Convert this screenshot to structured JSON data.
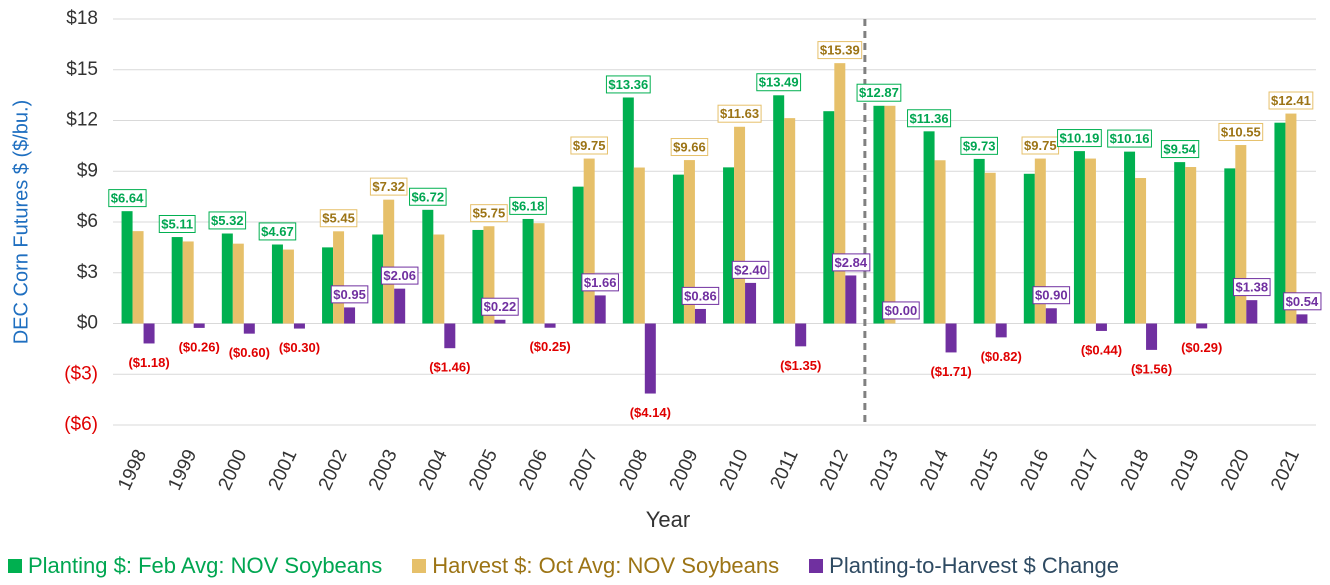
{
  "chart_data": {
    "type": "bar",
    "y_axis_label": "DEC Corn Futures $ ($/bu.)",
    "x_axis_label": "Year",
    "categories": [
      "1998",
      "1999",
      "2000",
      "2001",
      "2002",
      "2003",
      "2004",
      "2005",
      "2006",
      "2007",
      "2008",
      "2009",
      "2010",
      "2011",
      "2012",
      "2013",
      "2014",
      "2015",
      "2016",
      "2017",
      "2018",
      "2019",
      "2020",
      "2021"
    ],
    "series": [
      {
        "name": "Planting $: Feb Avg: NOV Soybeans",
        "color": "#00b050",
        "values": [
          6.64,
          5.11,
          5.32,
          4.67,
          4.5,
          5.26,
          6.72,
          5.53,
          6.18,
          8.09,
          13.36,
          8.8,
          9.23,
          13.49,
          12.55,
          12.87,
          11.36,
          9.73,
          8.85,
          10.19,
          10.16,
          9.54,
          9.17,
          11.87
        ],
        "value_labels": [
          "$6.64",
          "$5.11",
          "$5.32",
          "$4.67",
          null,
          null,
          "$6.72",
          null,
          "$6.18",
          null,
          "$13.36",
          null,
          null,
          "$13.49",
          null,
          "$12.87",
          "$11.36",
          "$9.73",
          null,
          "$10.19",
          "$10.16",
          "$9.54",
          null,
          null
        ]
      },
      {
        "name": "Harvest $: Oct Avg: NOV Soybeans",
        "color": "#e6c06a",
        "values": [
          5.46,
          4.85,
          4.72,
          4.37,
          5.45,
          7.32,
          5.26,
          5.75,
          5.93,
          9.75,
          9.22,
          9.66,
          11.63,
          12.14,
          15.39,
          12.87,
          9.65,
          8.91,
          9.75,
          9.75,
          8.6,
          9.25,
          10.55,
          12.41
        ],
        "value_labels": [
          null,
          null,
          null,
          null,
          "$5.45",
          "$7.32",
          null,
          "$5.75",
          null,
          "$9.75",
          null,
          "$9.66",
          "$11.63",
          null,
          "$15.39",
          null,
          null,
          null,
          "$9.75",
          null,
          null,
          null,
          "$10.55",
          "$12.41"
        ]
      },
      {
        "name": "Planting-to-Harvest $ Change",
        "color": "#7030a0",
        "values": [
          -1.18,
          -0.26,
          -0.6,
          -0.3,
          0.95,
          2.06,
          -1.46,
          0.22,
          -0.25,
          1.66,
          -4.14,
          0.86,
          2.4,
          -1.35,
          2.84,
          0,
          -1.71,
          -0.82,
          0.9,
          -0.44,
          -1.56,
          -0.29,
          1.38,
          0.54
        ],
        "value_labels": [
          "($1.18)",
          "($0.26)",
          "($0.60)",
          "($0.30)",
          "$0.95",
          "$2.06",
          "($1.46)",
          "$0.22",
          "($0.25)",
          "$1.66",
          "($4.14)",
          "$0.86",
          "$2.40",
          "($1.35)",
          "$2.84",
          "$0.00",
          "($1.71)",
          "($0.82)",
          "$0.90",
          "($0.44)",
          "($1.56)",
          "($0.29)",
          "$1.38",
          "$0.54"
        ]
      }
    ],
    "ylim": [
      -6,
      18
    ],
    "yticks": [
      {
        "value": -6,
        "label": "($6)"
      },
      {
        "value": -3,
        "label": "($3)"
      },
      {
        "value": 0,
        "label": "$0"
      },
      {
        "value": 3,
        "label": "$3"
      },
      {
        "value": 6,
        "label": "$6"
      },
      {
        "value": 9,
        "label": "$9"
      },
      {
        "value": 12,
        "label": "$12"
      },
      {
        "value": 15,
        "label": "$15"
      },
      {
        "value": 18,
        "label": "$18"
      }
    ],
    "grid": true,
    "legend": "bottom"
  }
}
